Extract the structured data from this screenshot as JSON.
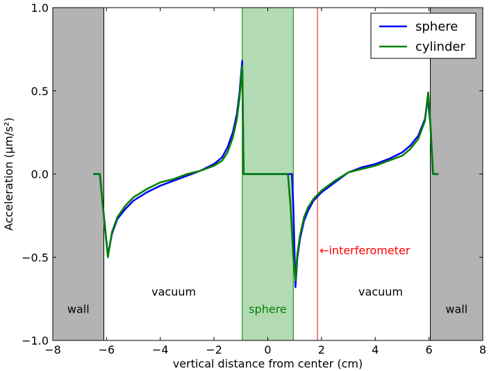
{
  "chart_data": {
    "type": "line",
    "title": "",
    "xlabel": "vertical distance from center (cm)",
    "ylabel": "Acceleration (μm/s²)",
    "xlim": [
      -8,
      8
    ],
    "ylim": [
      -1.0,
      1.0
    ],
    "xticks": [
      -8,
      -6,
      -4,
      -2,
      0,
      2,
      4,
      6,
      8
    ],
    "xtick_labels": [
      "−8",
      "−6",
      "−4",
      "−2",
      "0",
      "2",
      "4",
      "6",
      "8"
    ],
    "yticks": [
      -1.0,
      -0.5,
      0.0,
      0.5,
      1.0
    ],
    "ytick_labels": [
      "−1.0",
      "−0.5",
      "0.0",
      "0.5",
      "1.0"
    ],
    "grid": false,
    "legend_position": "top-right",
    "regions": [
      {
        "label": "wall",
        "x0": -8,
        "x1": -6.1,
        "color": "#b3b3b3"
      },
      {
        "label": "sphere",
        "x0": -0.95,
        "x1": 0.95,
        "color": "#b3dbb3",
        "label_color": "#008000"
      },
      {
        "label": "wall",
        "x0": 6.05,
        "x1": 8,
        "color": "#b3b3b3"
      }
    ],
    "region_annotations": [
      {
        "label": "vacuum",
        "x": -3.5,
        "y": -0.73
      },
      {
        "label": "vacuum",
        "x": 4.2,
        "y": -0.73
      }
    ],
    "marker_line": {
      "x": 1.85,
      "label": "interferometer",
      "arrow": "←",
      "color": "#ff0000"
    },
    "series": [
      {
        "name": "sphere",
        "color": "#0000ff",
        "x": [
          -6.5,
          -6.25,
          -6.1,
          -5.95,
          -5.8,
          -5.6,
          -5.3,
          -5.0,
          -4.5,
          -4.0,
          -3.5,
          -3.0,
          -2.5,
          -2.0,
          -1.7,
          -1.5,
          -1.3,
          -1.15,
          -1.05,
          -0.95,
          -0.9,
          0.0,
          0.9,
          0.95,
          1.03,
          1.1,
          1.2,
          1.35,
          1.5,
          1.7,
          2.0,
          2.5,
          3.0,
          3.5,
          4.0,
          4.5,
          5.0,
          5.3,
          5.6,
          5.85,
          5.95,
          6.05,
          6.15,
          6.25,
          6.35
        ],
        "y": [
          0.0,
          0.0,
          -0.25,
          -0.49,
          -0.36,
          -0.27,
          -0.21,
          -0.16,
          -0.11,
          -0.07,
          -0.04,
          -0.01,
          0.02,
          0.06,
          0.1,
          0.16,
          0.25,
          0.36,
          0.49,
          0.68,
          0.0,
          0.0,
          0.0,
          -0.2,
          -0.68,
          -0.5,
          -0.39,
          -0.28,
          -0.22,
          -0.16,
          -0.11,
          -0.05,
          0.01,
          0.04,
          0.06,
          0.09,
          0.13,
          0.17,
          0.23,
          0.33,
          0.46,
          0.3,
          0.0,
          0.0,
          0.0
        ]
      },
      {
        "name": "cylinder",
        "color": "#008000",
        "x": [
          -6.5,
          -6.25,
          -6.1,
          -5.95,
          -5.8,
          -5.6,
          -5.3,
          -5.0,
          -4.5,
          -4.0,
          -3.5,
          -3.0,
          -2.5,
          -2.0,
          -1.7,
          -1.5,
          -1.3,
          -1.15,
          -1.05,
          -0.95,
          -0.9,
          0.0,
          0.75,
          0.85,
          0.95,
          1.03,
          1.1,
          1.2,
          1.35,
          1.5,
          1.7,
          2.0,
          2.5,
          3.0,
          3.5,
          4.0,
          4.5,
          5.0,
          5.3,
          5.6,
          5.85,
          5.97,
          6.05,
          6.15,
          6.25,
          6.35
        ],
        "y": [
          0.0,
          0.0,
          -0.25,
          -0.5,
          -0.35,
          -0.26,
          -0.19,
          -0.14,
          -0.09,
          -0.05,
          -0.03,
          0.0,
          0.02,
          0.05,
          0.08,
          0.13,
          0.22,
          0.33,
          0.46,
          0.65,
          0.0,
          0.0,
          0.0,
          -0.2,
          -0.5,
          -0.64,
          -0.48,
          -0.37,
          -0.26,
          -0.2,
          -0.15,
          -0.1,
          -0.04,
          0.01,
          0.03,
          0.05,
          0.08,
          0.11,
          0.15,
          0.21,
          0.32,
          0.49,
          0.3,
          0.0,
          0.0,
          0.0
        ]
      }
    ]
  }
}
